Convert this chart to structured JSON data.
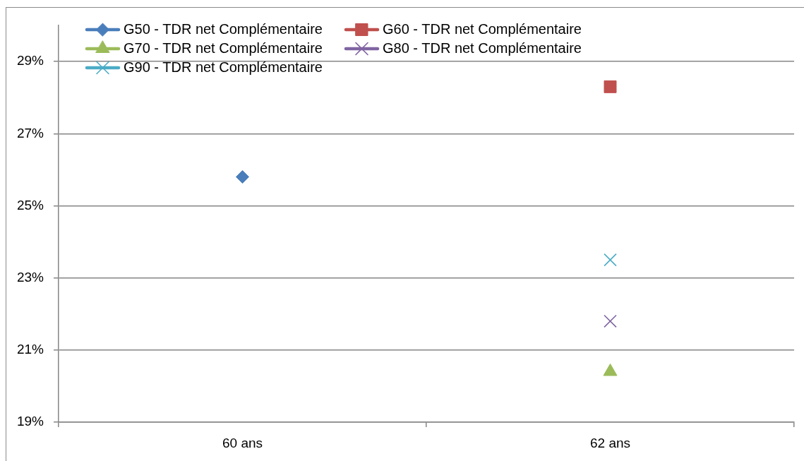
{
  "chart_data": {
    "type": "line",
    "categories": [
      "60 ans",
      "62 ans"
    ],
    "series": [
      {
        "name": "G50 - TDR net Complémentaire",
        "color": "#4a7ebb",
        "marker": "diamond",
        "values": [
          25.8,
          null
        ]
      },
      {
        "name": "G60 - TDR net Complémentaire",
        "color": "#c0504d",
        "marker": "square",
        "values": [
          null,
          28.3
        ]
      },
      {
        "name": "G70 - TDR net Complémentaire",
        "color": "#9bbb59",
        "marker": "triangle",
        "values": [
          null,
          20.4
        ]
      },
      {
        "name": "G80 - TDR net Complémentaire",
        "color": "#8064a2",
        "marker": "cross",
        "values": [
          null,
          21.8
        ]
      },
      {
        "name": "G90 - TDR net Complémentaire",
        "color": "#4bacc6",
        "marker": "cross",
        "values": [
          null,
          23.5
        ]
      }
    ],
    "ylim": [
      19,
      30
    ],
    "yticks": [
      {
        "value": 19,
        "label": "19%"
      },
      {
        "value": 21,
        "label": "21%"
      },
      {
        "value": 23,
        "label": "23%"
      },
      {
        "value": 25,
        "label": "25%"
      },
      {
        "value": 27,
        "label": "27%"
      },
      {
        "value": 29,
        "label": "29%"
      }
    ],
    "grid": "y",
    "legend": "top left"
  }
}
